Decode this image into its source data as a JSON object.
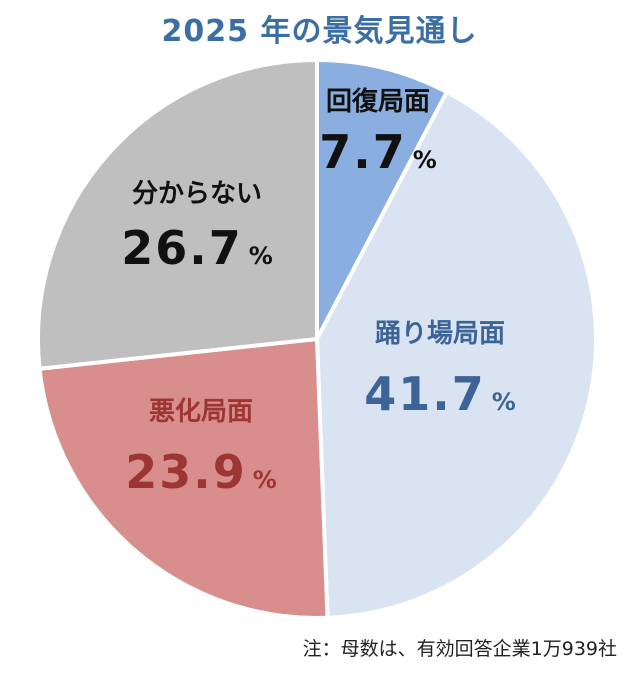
{
  "chart_data": {
    "type": "pie",
    "title": "2025 年の景気見通し",
    "unit": "%",
    "slices": [
      {
        "label": "回復局面",
        "value": 7.7,
        "color": "#8aaee0",
        "text_color": "#111111"
      },
      {
        "label": "踊り場局面",
        "value": 41.7,
        "color": "#dae3f1",
        "text_color": "#3c6496"
      },
      {
        "label": "悪化局面",
        "value": 23.9,
        "color": "#d98e8e",
        "text_color": "#9e3535"
      },
      {
        "label": "分からない",
        "value": 26.7,
        "color": "#bfbfbf",
        "text_color": "#111111"
      }
    ],
    "footnote": "注：母数は、有効回答企業1万939社"
  }
}
